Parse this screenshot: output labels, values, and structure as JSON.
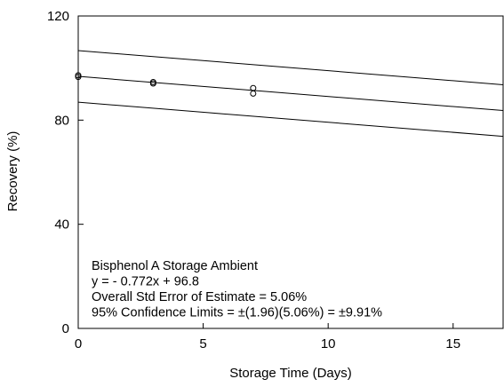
{
  "chart_data": {
    "type": "scatter",
    "xlabel": "Storage Time (Days)",
    "ylabel": "Recovery (%)",
    "xlim": [
      0,
      17
    ],
    "ylim": [
      0,
      120
    ],
    "x_ticks": [
      0,
      5,
      10,
      15
    ],
    "y_ticks": [
      0,
      40,
      80,
      120
    ],
    "grid": false,
    "series": [
      {
        "type": "scatter",
        "marker": "open-circle",
        "points": [
          {
            "x": 0,
            "y": 97.2
          },
          {
            "x": 0,
            "y": 96.6
          },
          {
            "x": 3,
            "y": 94.6
          },
          {
            "x": 3,
            "y": 94.1
          },
          {
            "x": 7,
            "y": 92.3
          },
          {
            "x": 7,
            "y": 90.2
          }
        ]
      }
    ],
    "lines": [
      {
        "role": "upper-confidence-limit",
        "x": [
          0,
          17
        ],
        "y": [
          106.71,
          93.59
        ]
      },
      {
        "role": "regression",
        "x": [
          0,
          17
        ],
        "y": [
          96.8,
          83.68
        ]
      },
      {
        "role": "lower-confidence-limit",
        "x": [
          0,
          17
        ],
        "y": [
          86.89,
          73.77
        ]
      }
    ],
    "annotations": [
      "Bisphenol A Storage Ambient",
      "y = - 0.772x + 96.8",
      "Overall Std Error of Estimate = 5.06%",
      "95% Confidence Limits = ±(1.96)(5.06%) = ±9.91%"
    ]
  }
}
